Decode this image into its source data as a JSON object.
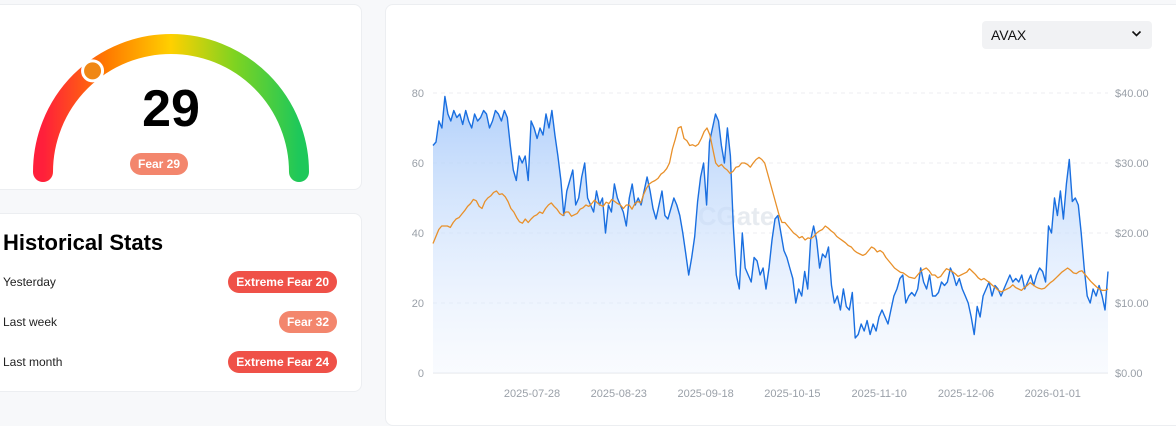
{
  "gauge": {
    "value": "29",
    "badge": "Fear 29",
    "level": 29,
    "max": 100,
    "colors": [
      "#ff1f3b",
      "#ff7a00",
      "#ffd000",
      "#7ed321",
      "#1ec85a"
    ],
    "indicator_color": "#f08714"
  },
  "stats": {
    "title": "Historical Stats",
    "rows": [
      {
        "label": "Yesterday",
        "badge": "Extreme Fear 20",
        "kind": "extreme",
        "color": "#ef5148"
      },
      {
        "label": "Last week",
        "badge": "Fear 32",
        "kind": "fear",
        "color": "#f3866d"
      },
      {
        "label": "Last month",
        "badge": "Extreme Fear 24",
        "kind": "extreme",
        "color": "#ef5148"
      }
    ]
  },
  "selector": {
    "value": "AVAX",
    "icon": "chevron-down-icon"
  },
  "chart_data": {
    "type": "line",
    "watermark": "CGate",
    "x_ticks": [
      "2025-07-28",
      "2025-08-23",
      "2025-09-18",
      "2025-10-15",
      "2025-11-10",
      "2025-12-06",
      "2026-01-01"
    ],
    "y_left": {
      "range": [
        0,
        80
      ],
      "ticks": [
        "0",
        "20",
        "40",
        "60",
        "80"
      ]
    },
    "y_right": {
      "range": [
        0,
        40
      ],
      "ticks": [
        "$0.00",
        "$10.00",
        "$20.00",
        "$30.00",
        "$40.00"
      ]
    },
    "grid": true,
    "series": [
      {
        "axis": "left",
        "color": "#1a6fe0",
        "fill": true,
        "values": [
          65,
          66,
          72,
          70,
          79,
          74,
          72,
          75,
          73,
          74,
          71,
          75,
          72,
          70,
          74,
          72,
          73,
          75,
          74,
          70,
          72,
          75,
          74,
          72,
          75,
          73,
          65,
          58,
          55,
          62,
          60,
          62,
          55,
          72,
          70,
          67,
          70,
          68,
          74,
          70,
          75,
          68,
          62,
          55,
          45,
          52,
          55,
          58,
          48,
          50,
          56,
          60,
          50,
          48,
          46,
          52,
          48,
          50,
          40,
          48,
          46,
          54,
          50,
          48,
          46,
          42,
          50,
          54,
          48,
          50,
          48,
          52,
          56,
          52,
          47,
          44,
          48,
          52,
          45,
          44,
          47,
          50,
          48,
          45,
          40,
          34,
          28,
          33,
          39,
          49,
          56,
          60,
          48,
          66,
          70,
          74,
          72,
          65,
          60,
          70,
          62,
          42,
          28,
          24,
          40,
          30,
          28,
          26,
          33,
          32,
          28,
          30,
          24,
          30,
          38,
          44,
          45,
          40,
          35,
          33,
          30,
          27,
          20,
          24,
          22,
          29,
          24,
          38,
          42,
          38,
          30,
          34,
          33,
          36,
          25,
          20,
          22,
          18,
          24,
          19,
          18,
          23,
          10,
          11,
          14,
          12,
          15,
          11,
          14,
          12,
          16,
          18,
          16,
          14,
          18,
          22,
          24,
          27,
          28,
          20,
          22,
          23,
          22,
          24,
          30,
          26,
          24,
          28,
          22,
          22,
          23,
          26,
          25,
          26,
          30,
          28,
          25,
          27,
          24,
          22,
          20,
          16,
          11,
          19,
          16,
          22,
          24,
          26,
          22,
          25,
          24,
          22,
          24,
          26,
          28,
          26,
          27,
          26,
          28,
          24,
          26,
          28,
          25,
          28,
          30,
          29,
          26,
          42,
          40,
          50,
          45,
          52,
          44,
          54,
          61,
          49,
          50,
          48,
          40,
          30,
          22,
          20,
          24,
          22,
          25,
          22,
          18,
          29
        ]
      },
      {
        "axis": "right",
        "color": "#e8902a",
        "fill": false,
        "values": [
          18.5,
          19.5,
          20.5,
          21,
          21,
          21,
          20.8,
          21.5,
          22,
          22.2,
          22.7,
          23.2,
          23.8,
          24.2,
          24.8,
          24.6,
          23.8,
          23.5,
          24.5,
          25,
          25.3,
          25.8,
          26,
          25.5,
          25.6,
          25.2,
          24.5,
          23.5,
          23,
          22.2,
          21.6,
          21.4,
          22,
          21.5,
          22,
          22.4,
          22.6,
          23,
          22.8,
          23.5,
          24,
          24.3,
          23.8,
          23.4,
          22.8,
          22.5,
          23,
          23,
          22.4,
          22.6,
          22.8,
          23.4,
          23.6,
          24,
          23.8,
          24.2,
          24.7,
          24.3,
          24,
          23.8,
          24.4,
          24.2,
          24.8,
          24.5,
          24.2,
          24,
          23.5,
          24,
          24,
          23.4,
          24.2,
          24.5,
          24.3,
          25.5,
          26.4,
          27,
          27.3,
          27.5,
          27.8,
          28.4,
          28.7,
          29.2,
          30,
          32,
          33.4,
          35,
          35.2,
          33.5,
          33.2,
          32.5,
          32.6,
          32.4,
          32.7,
          33.5,
          34.5,
          35,
          34,
          32,
          30,
          29.5,
          29.8,
          29.3,
          29,
          28.5,
          28.8,
          29.4,
          29.5,
          30,
          30,
          29.8,
          29.4,
          30,
          30.5,
          30.8,
          30.5,
          30,
          28.5,
          27,
          25.5,
          24,
          22.5,
          21.5,
          21.5,
          21,
          20.5,
          20,
          19.7,
          19.3,
          19.5,
          19,
          19.3,
          19.2,
          19.5,
          20,
          20.3,
          20.5,
          21,
          20.7,
          20.3,
          20,
          19.5,
          19.2,
          18.9,
          18.6,
          18.2,
          18,
          17.5,
          17.2,
          17,
          16.8,
          17,
          17.5,
          18,
          17.8,
          17.3,
          17.5,
          17.2,
          16.5,
          16,
          15.5,
          15,
          14.7,
          14.4,
          14.3,
          14,
          13.7,
          13.6,
          13.5,
          14,
          14.5,
          14.8,
          15,
          14.6,
          14,
          14,
          13.6,
          13.8,
          14.4,
          14.9,
          14.7,
          14.5,
          14.2,
          13.8,
          14,
          14.2,
          14.4,
          14.9,
          14.5,
          14.1,
          13.6,
          13.3,
          13.5,
          13.2,
          12.9,
          12.5,
          12.2,
          11.8,
          11.6,
          11.8,
          12,
          12.2,
          12.6,
          12.2,
          12,
          11.8,
          12.2,
          12.5,
          12.9,
          12.6,
          12.3,
          12.1,
          12,
          12.1,
          12.5,
          12.9,
          13.2,
          13.6,
          14,
          14.4,
          14.7,
          15,
          14.7,
          14.3,
          14.2,
          14.5,
          14.6,
          14.1,
          13.6,
          13.1,
          12.7,
          12.3,
          12,
          11.8,
          11.8,
          12
        ]
      }
    ]
  }
}
